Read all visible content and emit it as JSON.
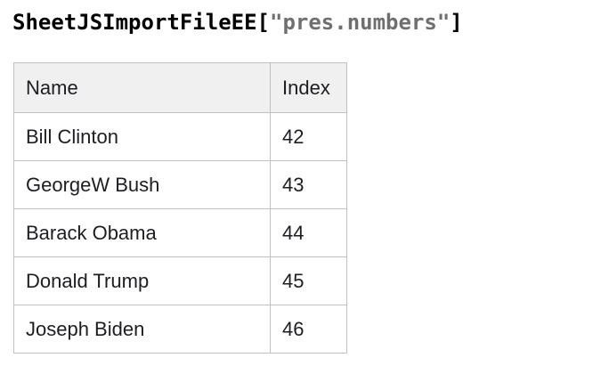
{
  "title": {
    "variable": "SheetJSImportFileEE",
    "open_bracket": "[",
    "string_literal": "\"pres.numbers\"",
    "close_bracket": "]"
  },
  "table": {
    "columns": [
      "Name",
      "Index"
    ],
    "rows": [
      [
        "Bill Clinton",
        "42"
      ],
      [
        "GeorgeW Bush",
        "43"
      ],
      [
        "Barack Obama",
        "44"
      ],
      [
        "Donald Trump",
        "45"
      ],
      [
        "Joseph Biden",
        "46"
      ]
    ]
  },
  "colors": {
    "title_text": "#000000",
    "string_literal_text": "#6f6f6f",
    "table_border": "#c0c0c0",
    "header_background": "#f0f0f0",
    "row_background": "#ffffff",
    "cell_text": "#1c1e21"
  },
  "chart_data": {
    "type": "table",
    "title": "SheetJSImportFileEE[\"pres.numbers\"]",
    "columns": [
      "Name",
      "Index"
    ],
    "rows": [
      [
        "Bill Clinton",
        42
      ],
      [
        "GeorgeW Bush",
        43
      ],
      [
        "Barack Obama",
        44
      ],
      [
        "Donald Trump",
        45
      ],
      [
        "Joseph Biden",
        46
      ]
    ]
  }
}
